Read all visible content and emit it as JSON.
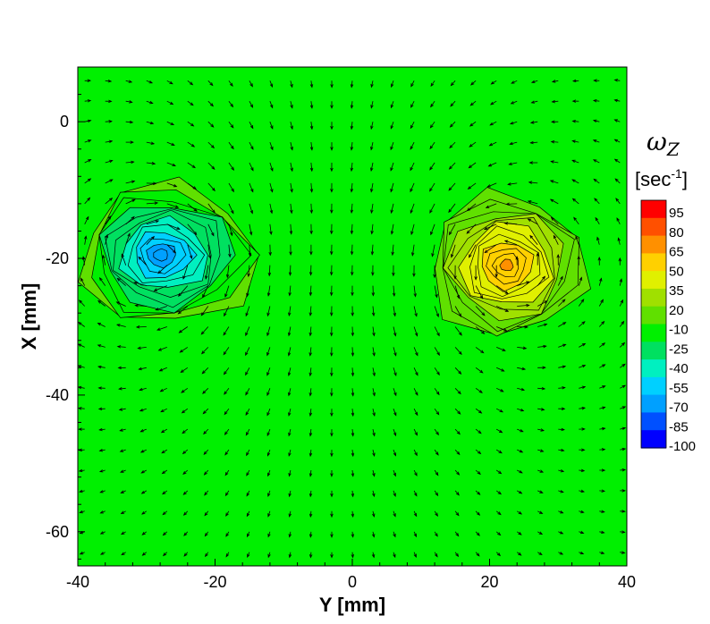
{
  "chart_data": {
    "type": "heatmap",
    "subtype": "contour-with-vectors",
    "title": "",
    "xlabel": "Y [mm]",
    "ylabel": "X [mm]",
    "xlim": [
      -40,
      40
    ],
    "ylim": [
      -65,
      8
    ],
    "x_ticks": [
      -40,
      -20,
      0,
      20,
      40
    ],
    "x_tick_labels": [
      "-40",
      "-20",
      "0",
      "20",
      "40"
    ],
    "y_ticks": [
      0,
      -20,
      -40,
      -60
    ],
    "y_tick_labels": [
      "0",
      "-20",
      "-40",
      "-60"
    ],
    "grid": false,
    "colorbar": {
      "variable": "ωZ",
      "variable_base": "ω",
      "variable_sub": "Z",
      "unit_prefix": "[sec",
      "unit_sup": "-1",
      "unit_suffix": "]",
      "levels": [
        -100,
        -85,
        -70,
        -55,
        -40,
        -25,
        -10,
        20,
        35,
        50,
        65,
        80,
        95
      ],
      "labels": [
        "95",
        "80",
        "65",
        "50",
        "35",
        "20",
        "-10",
        "-25",
        "-40",
        "-55",
        "-70",
        "-85",
        "-100"
      ],
      "colors": [
        "#0000ff",
        "#0050ff",
        "#00a0ff",
        "#00d0ff",
        "#00f0c0",
        "#00e060",
        "#00f000",
        "#60e000",
        "#a0e000",
        "#e0f000",
        "#ffd000",
        "#ff9000",
        "#ff5000",
        "#ff0000"
      ],
      "placement": "right"
    },
    "background_value": 0,
    "vortices": [
      {
        "name": "negative vortex",
        "center_y": -28,
        "center_x": -19.5,
        "peak": -80
      },
      {
        "name": "positive vortex",
        "center_y": 22.5,
        "center_x": -21,
        "peak": 70
      }
    ],
    "vector_field": {
      "kind": "counter-rotating vortex pair",
      "y_range": [
        -39,
        39
      ],
      "x_range": [
        -63,
        6
      ],
      "arrow_direction": "downward between vortices"
    }
  }
}
